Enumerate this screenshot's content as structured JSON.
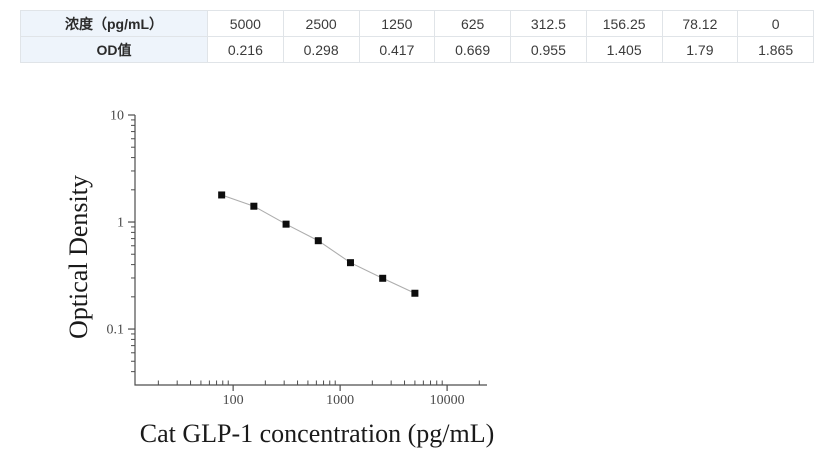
{
  "page": {
    "background": "#ffffff"
  },
  "table": {
    "header_bg": "#eef4fb",
    "border_color": "#e0e4e8",
    "rows": [
      {
        "label": "浓度（pg/mL）",
        "values": [
          "5000",
          "2500",
          "1250",
          "625",
          "312.5",
          "156.25",
          "78.12",
          "0"
        ]
      },
      {
        "label": "OD值",
        "values": [
          "0.216",
          "0.298",
          "0.417",
          "0.669",
          "0.955",
          "1.405",
          "1.79",
          "1.865"
        ]
      }
    ]
  },
  "chart_data": {
    "type": "line",
    "x": [
      78.12,
      156.25,
      312.5,
      625,
      1250,
      2500,
      5000
    ],
    "y": [
      1.79,
      1.405,
      0.955,
      0.669,
      0.417,
      0.298,
      0.216
    ],
    "title": "",
    "xlabel": "Cat GLP-1 concentration (pg/mL)",
    "ylabel": "Optical Density",
    "x_scale": "log",
    "y_scale": "log",
    "x_range": [
      12.1,
      23600
    ],
    "y_range": [
      0.03,
      10
    ],
    "x_ticks": [
      100,
      1000,
      10000
    ],
    "x_tick_labels": [
      "100",
      "1000",
      "10000"
    ],
    "y_ticks": [
      10,
      1,
      0.1
    ],
    "y_tick_labels": [
      "10",
      "1",
      "0.1"
    ],
    "grid": "off",
    "legend": "none",
    "marker": "square",
    "marker_color": "#0d0d0d",
    "line_color": "#adadad",
    "axis_color": "#4d4d4d",
    "tick_label_color": "#4a4a4a",
    "axis_label_color": "#1a1a1a"
  }
}
